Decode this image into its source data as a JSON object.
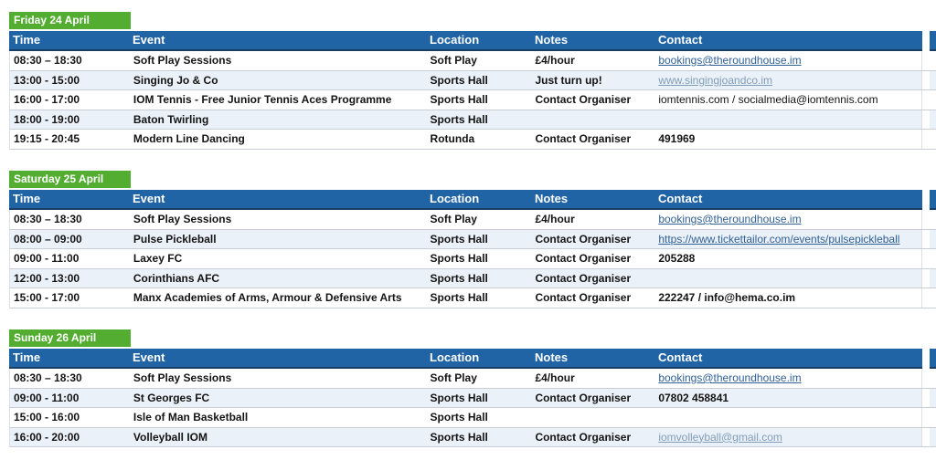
{
  "colors": {
    "day_badge_green": "#53AD31",
    "header_blue": "#2164A6",
    "header_border_navy": "#1A3E63",
    "row_stripe_blue": "#EAF1F8",
    "row_border_gray": "#C9CED6",
    "link_dark_blue": "#316094",
    "link_light_blue": "#829DB8",
    "text_black": "#141414"
  },
  "columns": [
    "Time",
    "Event",
    "Location",
    "Notes",
    "Contact"
  ],
  "days": [
    {
      "label": "Friday 24 April",
      "rows": [
        {
          "time": "08:30 – 18:30",
          "event": "Soft Play Sessions",
          "location": "Soft Play",
          "notes": "£4/hour",
          "contact": "bookings@theroundhouse.im",
          "contact_style": "link-dark"
        },
        {
          "time": "13:00 - 15:00",
          "event": "Singing Jo & Co",
          "location": "Sports Hall",
          "notes": "Just turn up!",
          "contact": "www.singingjoandco.im",
          "contact_style": "link-light"
        },
        {
          "time": "16:00 - 17:00",
          "event": "IOM Tennis - Free Junior Tennis Aces Programme",
          "location": "Sports Hall",
          "notes": "Contact Organiser",
          "contact": "iomtennis.com / socialmedia@iomtennis.com",
          "contact_style": "text-regular"
        },
        {
          "time": "18:00 - 19:00",
          "event": "Baton Twirling",
          "location": "Sports Hall",
          "notes": "",
          "contact": "",
          "contact_style": "text-regular"
        },
        {
          "time": "19:15 - 20:45",
          "event": "Modern Line Dancing",
          "location": "Rotunda",
          "notes": "Contact Organiser",
          "contact": "491969",
          "contact_style": "text-bold"
        }
      ]
    },
    {
      "label": "Saturday 25 April",
      "rows": [
        {
          "time": "08:30 – 18:30",
          "event": "Soft Play Sessions",
          "location": "Soft Play",
          "notes": "£4/hour",
          "contact": "bookings@theroundhouse.im",
          "contact_style": "link-dark"
        },
        {
          "time": "08:00 – 09:00",
          "event": "Pulse Pickleball",
          "location": "Sports Hall",
          "notes": "Contact Organiser",
          "contact": "https://www.tickettailor.com/events/pulsepickleball",
          "contact_style": "link-dark"
        },
        {
          "time": "09:00 - 11:00",
          "event": "Laxey FC",
          "location": "Sports Hall",
          "notes": "Contact Organiser",
          "contact": "205288",
          "contact_style": "text-bold"
        },
        {
          "time": "12:00 - 13:00",
          "event": "Corinthians AFC",
          "location": "Sports Hall",
          "notes": "Contact Organiser",
          "contact": "",
          "contact_style": "text-bold"
        },
        {
          "time": "15:00 - 17:00",
          "event": "Manx Academies of Arms, Armour & Defensive Arts",
          "location": "Sports Hall",
          "notes": "Contact Organiser",
          "contact": "222247 / info@hema.co.im",
          "contact_style": "text-bold"
        }
      ]
    },
    {
      "label": "Sunday 26 April",
      "rows": [
        {
          "time": "08:30 – 18:30",
          "event": "Soft Play Sessions",
          "location": "Soft Play",
          "notes": "£4/hour",
          "contact": "bookings@theroundhouse.im",
          "contact_style": "link-dark"
        },
        {
          "time": "09:00 - 11:00",
          "event": "St Georges FC",
          "location": "Sports Hall",
          "notes": "Contact Organiser",
          "contact": "07802 458841",
          "contact_style": "text-bold"
        },
        {
          "time": "15:00 - 16:00",
          "event": "Isle of Man Basketball",
          "location": "Sports Hall",
          "notes": "",
          "contact": "",
          "contact_style": "text-bold"
        },
        {
          "time": "16:00 - 20:00",
          "event": "Volleyball IOM",
          "location": "Sports Hall",
          "notes": "Contact Organiser",
          "contact": "iomvolleyball@gmail.com",
          "contact_style": "link-light"
        }
      ]
    }
  ]
}
